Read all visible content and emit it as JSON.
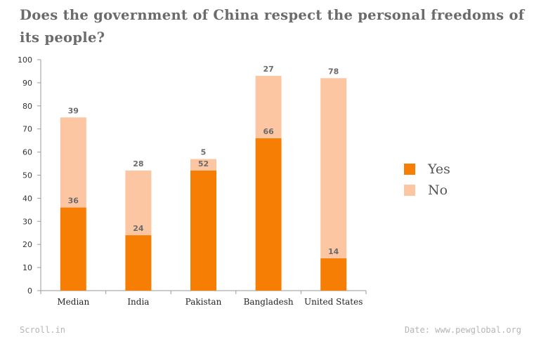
{
  "chart_data": {
    "type": "bar",
    "stacked": true,
    "title": "Does the government of China respect the personal freedoms of its people?",
    "categories": [
      "Median",
      "India",
      "Pakistan",
      "Bangladesh",
      "United States"
    ],
    "series": [
      {
        "name": "Yes",
        "color": "#f77e04",
        "values": [
          36,
          24,
          52,
          66,
          14
        ]
      },
      {
        "name": "No",
        "color": "#fcc6a2",
        "values": [
          39,
          28,
          5,
          27,
          78
        ]
      }
    ],
    "ylim": [
      0,
      100
    ],
    "yticks": [
      0,
      10,
      20,
      30,
      40,
      50,
      60,
      70,
      80,
      90,
      100
    ],
    "grid": false,
    "legend_position": "right"
  },
  "footer": {
    "source_left": "Scroll.in",
    "source_right": "Date: www.pewglobal.org"
  }
}
